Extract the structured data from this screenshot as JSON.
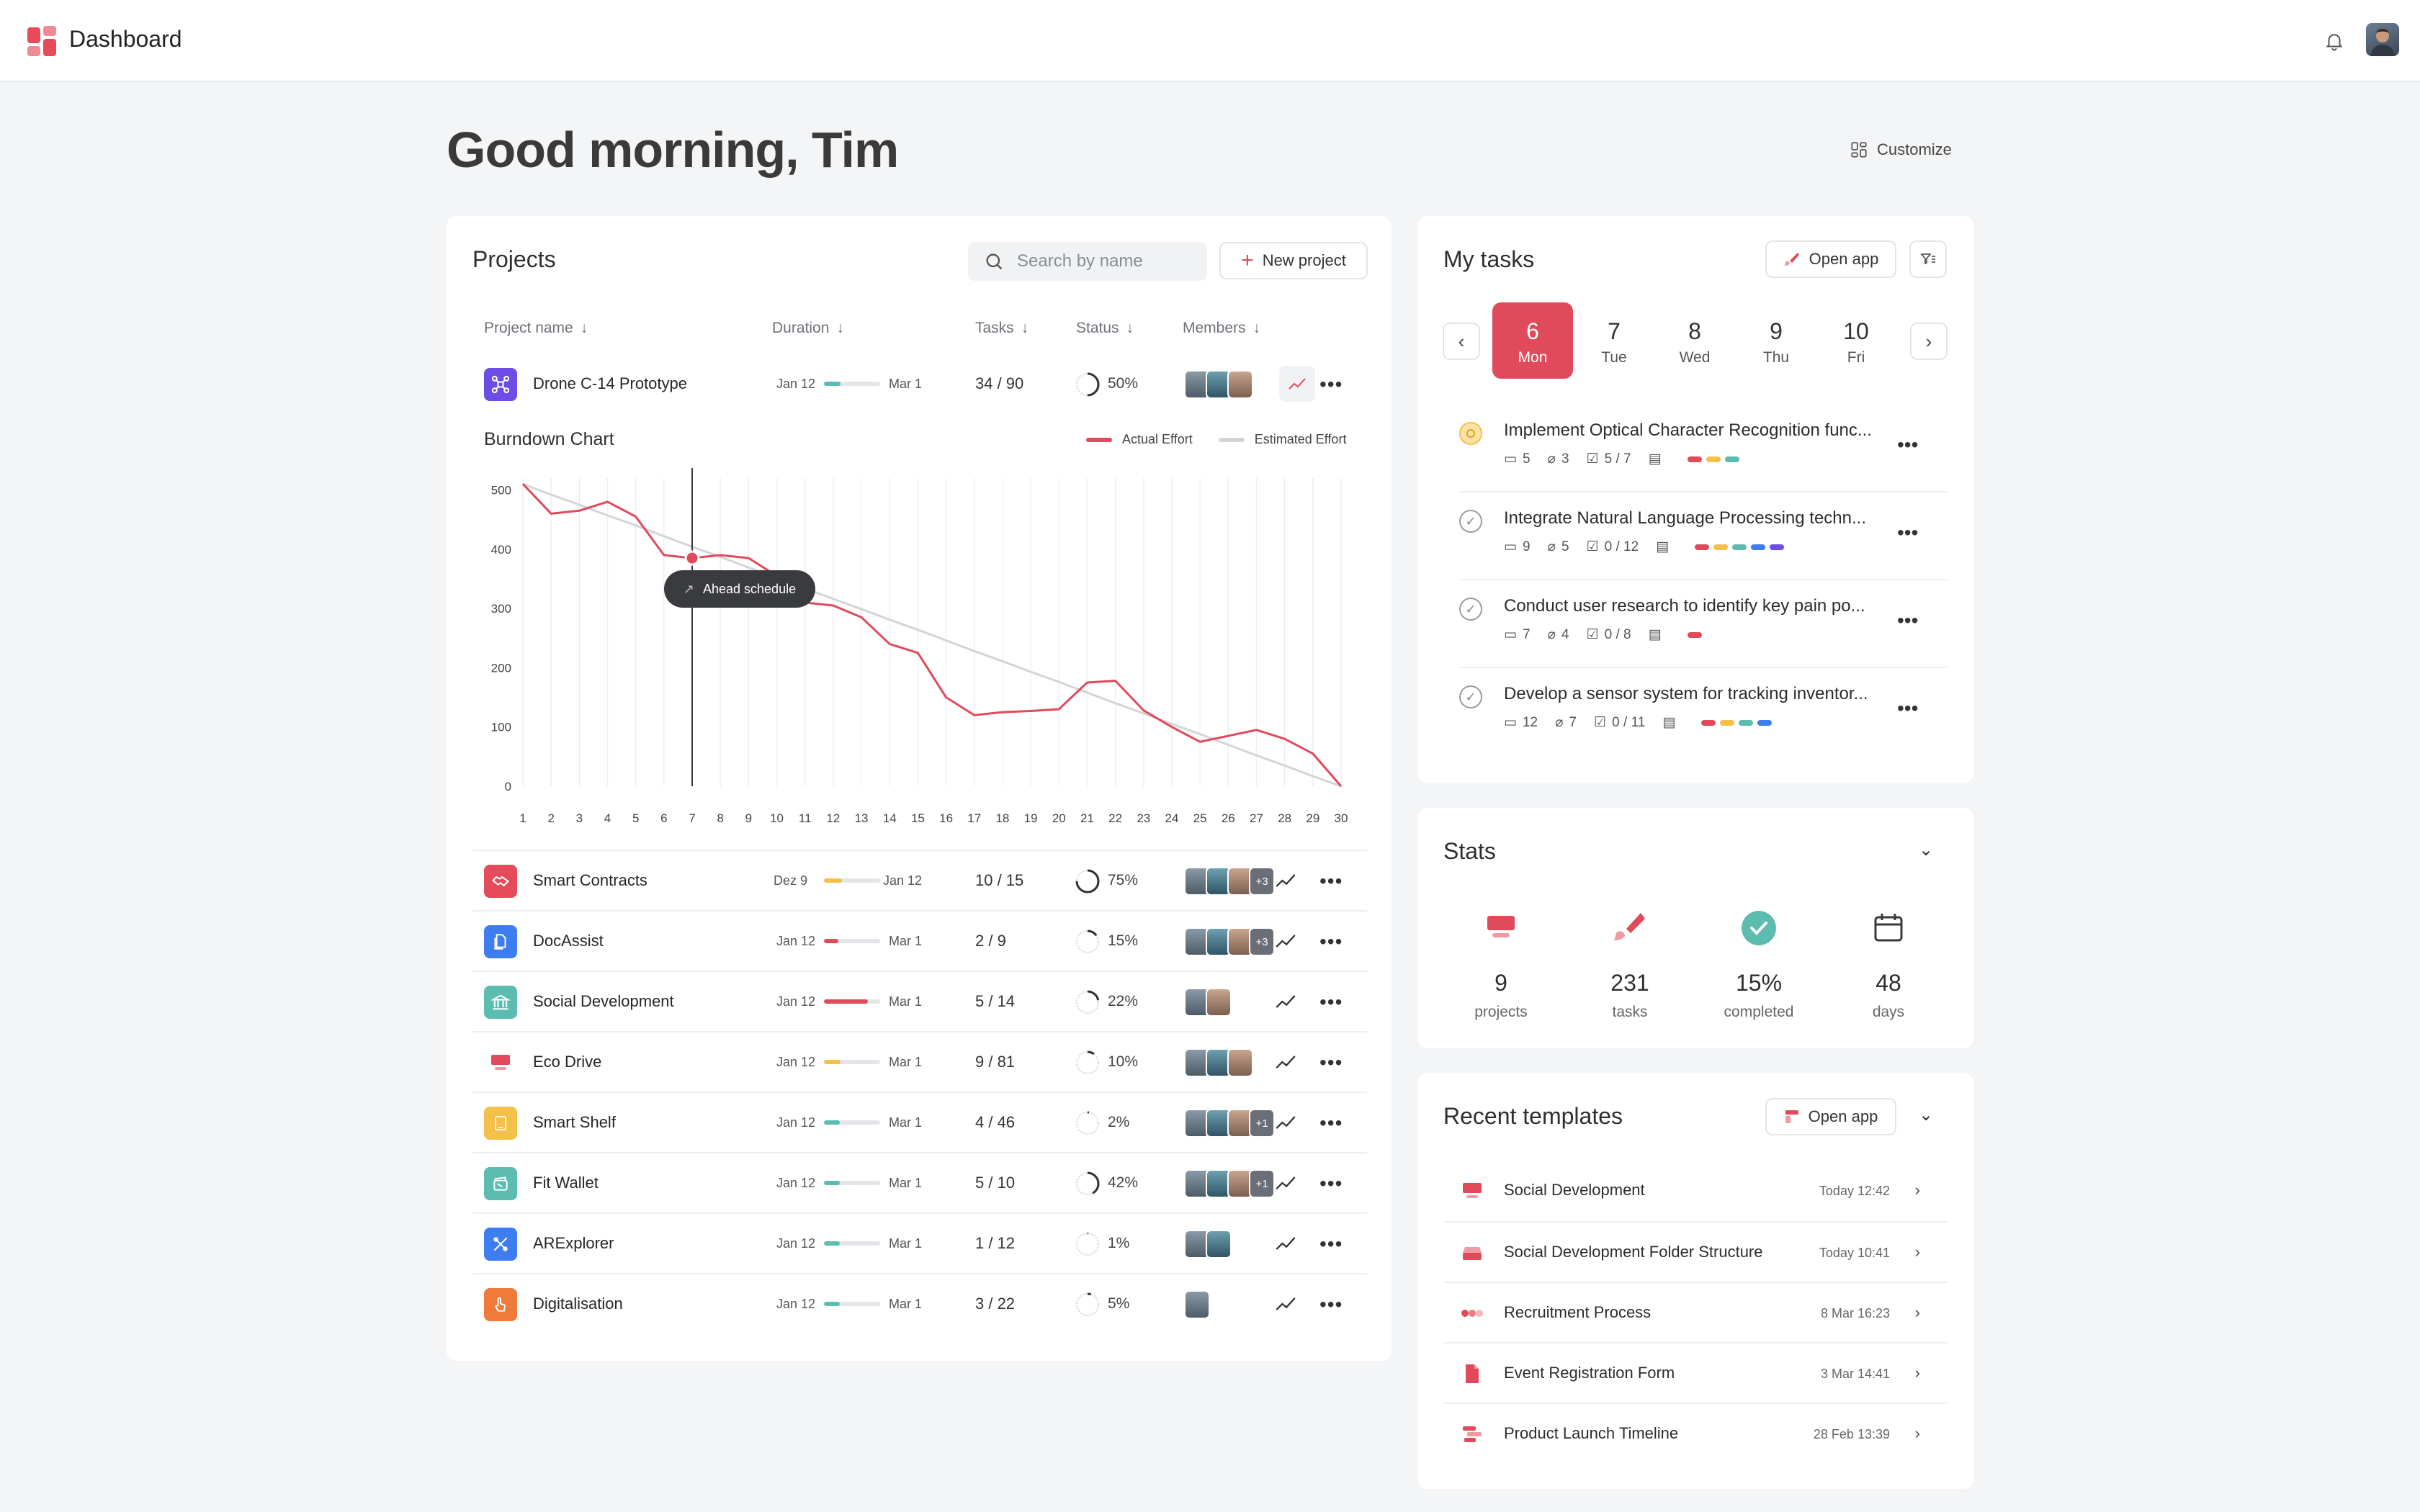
{
  "app": {
    "title": "Dashboard"
  },
  "greeting": "Good morning, Tim",
  "customize_label": "Customize",
  "colors": {
    "accent": "#e04a5b",
    "teal": "#5cbcb0",
    "yellow": "#f5c04a"
  },
  "projects": {
    "title": "Projects",
    "search_placeholder": "Search by name",
    "new_button": "New project",
    "columns": [
      "Project name",
      "Duration",
      "Tasks",
      "Status",
      "Members"
    ],
    "rows": [
      {
        "name": "Drone C-14 Prototype",
        "start": "Jan 12",
        "end": "Mar 1",
        "tasks": "34 / 90",
        "status": "50%",
        "progress": 0.5,
        "extra": ""
      },
      {
        "name": "Smart Contracts",
        "start": "Dez 9",
        "end": "Jan 12",
        "tasks": "10 / 15",
        "status": "75%",
        "progress": 0.75,
        "extra": "+3"
      },
      {
        "name": "DocAssist",
        "start": "Jan 12",
        "end": "Mar 1",
        "tasks": "2 / 9",
        "status": "15%",
        "progress": 0.15,
        "extra": "+3"
      },
      {
        "name": "Social Development",
        "start": "Jan 12",
        "end": "Mar 1",
        "tasks": "5 / 14",
        "status": "22%",
        "progress": 0.22,
        "extra": ""
      },
      {
        "name": "Eco Drive",
        "start": "Jan 12",
        "end": "Mar 1",
        "tasks": "9 / 81",
        "status": "10%",
        "progress": 0.1,
        "extra": ""
      },
      {
        "name": "Smart Shelf",
        "start": "Jan 12",
        "end": "Mar 1",
        "tasks": "4 / 46",
        "status": "2%",
        "progress": 0.02,
        "extra": "+1"
      },
      {
        "name": "Fit Wallet",
        "start": "Jan 12",
        "end": "Mar 1",
        "tasks": "5 / 10",
        "status": "42%",
        "progress": 0.42,
        "extra": "+1"
      },
      {
        "name": "ARExplorer",
        "start": "Jan 12",
        "end": "Mar 1",
        "tasks": "1 / 12",
        "status": "1%",
        "progress": 0.01,
        "extra": ""
      },
      {
        "name": "Digitalisation",
        "start": "Jan 12",
        "end": "Mar 1",
        "tasks": "3 / 22",
        "status": "5%",
        "progress": 0.05,
        "extra": ""
      }
    ]
  },
  "chart_data": {
    "type": "line",
    "title": "Burndown Chart",
    "x": [
      1,
      2,
      3,
      4,
      5,
      6,
      7,
      8,
      9,
      10,
      11,
      12,
      13,
      14,
      15,
      16,
      17,
      18,
      19,
      20,
      21,
      22,
      23,
      24,
      25,
      26,
      27,
      28,
      29,
      30
    ],
    "series": [
      {
        "name": "Actual Effort",
        "color": "#e04a5b",
        "values": [
          510,
          460,
          465,
          480,
          455,
          390,
          385,
          390,
          385,
          355,
          310,
          305,
          285,
          240,
          225,
          150,
          120,
          125,
          127,
          130,
          175,
          178,
          128,
          100,
          75,
          85,
          95,
          80,
          55,
          0
        ]
      },
      {
        "name": "Estimated Effort",
        "color": "#d3d4d8",
        "values": [
          510,
          492,
          475,
          457,
          440,
          422,
          404,
          387,
          369,
          352,
          334,
          316,
          299,
          281,
          264,
          246,
          228,
          211,
          193,
          176,
          158,
          140,
          123,
          105,
          88,
          70,
          52,
          35,
          17,
          0
        ]
      }
    ],
    "yticks": [
      0,
      100,
      200,
      300,
      400,
      500
    ],
    "ylim": [
      0,
      520
    ],
    "highlight_x": 7,
    "tooltip": "Ahead schedule"
  },
  "tasks": {
    "title": "My tasks",
    "open_app": "Open app",
    "days": [
      {
        "num": "6",
        "label": "Mon",
        "active": true
      },
      {
        "num": "7",
        "label": "Tue",
        "active": false
      },
      {
        "num": "8",
        "label": "Wed",
        "active": false
      },
      {
        "num": "9",
        "label": "Thu",
        "active": false
      },
      {
        "num": "10",
        "label": "Fri",
        "active": false
      }
    ],
    "items": [
      {
        "title": "Implement Optical Character Recognition func...",
        "comments": "5",
        "attachments": "3",
        "checklist": "5 / 7"
      },
      {
        "title": "Integrate Natural Language Processing techn...",
        "comments": "9",
        "attachments": "5",
        "checklist": "0 / 12"
      },
      {
        "title": "Conduct user research to identify key pain po...",
        "comments": "7",
        "attachments": "4",
        "checklist": "0 / 8"
      },
      {
        "title": "Develop a sensor system for tracking inventor...",
        "comments": "12",
        "attachments": "7",
        "checklist": "0 / 11"
      }
    ]
  },
  "stats": {
    "title": "Stats",
    "items": [
      {
        "value": "9",
        "label": "projects"
      },
      {
        "value": "231",
        "label": "tasks"
      },
      {
        "value": "15%",
        "label": "completed"
      },
      {
        "value": "48",
        "label": "days"
      }
    ]
  },
  "templates": {
    "title": "Recent templates",
    "open_app": "Open app",
    "items": [
      {
        "name": "Social Development",
        "time": "Today 12:42"
      },
      {
        "name": "Social Development Folder Structure",
        "time": "Today 10:41"
      },
      {
        "name": "Recruitment Process",
        "time": "8 Mar 16:23"
      },
      {
        "name": "Event Registration Form",
        "time": "3 Mar 14:41"
      },
      {
        "name": "Product Launch Timeline",
        "time": "28 Feb 13:39"
      }
    ]
  }
}
